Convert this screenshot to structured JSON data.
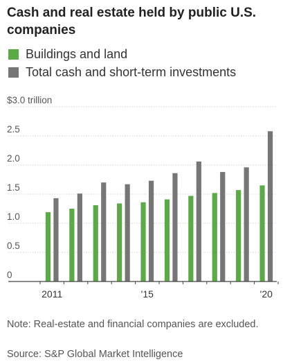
{
  "chart_data": {
    "type": "bar",
    "title": "Cash and real estate held by public U.S. companies",
    "ylabel_unit": "$3.0 trillion",
    "ylim": [
      0,
      3.0
    ],
    "yticks": [
      0,
      0.5,
      1.0,
      1.5,
      2.0,
      2.5,
      3.0
    ],
    "ytick_labels": [
      "0",
      "0.5",
      "1.0",
      "1.5",
      "2.0",
      "2.5",
      "$3.0 trillion"
    ],
    "categories": [
      "2011",
      "2012",
      "2013",
      "2014",
      "2015",
      "2016",
      "2017",
      "2018",
      "2019",
      "2020"
    ],
    "xtick_labels": [
      {
        "category": "2011",
        "label": "2011"
      },
      {
        "category": "2015",
        "label": "'15"
      },
      {
        "category": "2020",
        "label": "'20"
      }
    ],
    "series": [
      {
        "name": "Buildings and land",
        "color": "#5aaa46",
        "values": [
          1.19,
          1.25,
          1.31,
          1.34,
          1.36,
          1.41,
          1.47,
          1.52,
          1.57,
          1.65
        ]
      },
      {
        "name": "Total cash and short-term investments",
        "color": "#767676",
        "values": [
          1.43,
          1.51,
          1.7,
          1.67,
          1.73,
          1.86,
          2.06,
          1.88,
          1.96,
          2.58
        ]
      }
    ],
    "grid": true,
    "legend_position": "top-left"
  },
  "header": {
    "title": "Cash and real estate held by public U.S. companies"
  },
  "footer": {
    "note": "Note: Real-estate and financial companies are excluded.",
    "source": "Source: S&P Global Market Intelligence"
  }
}
